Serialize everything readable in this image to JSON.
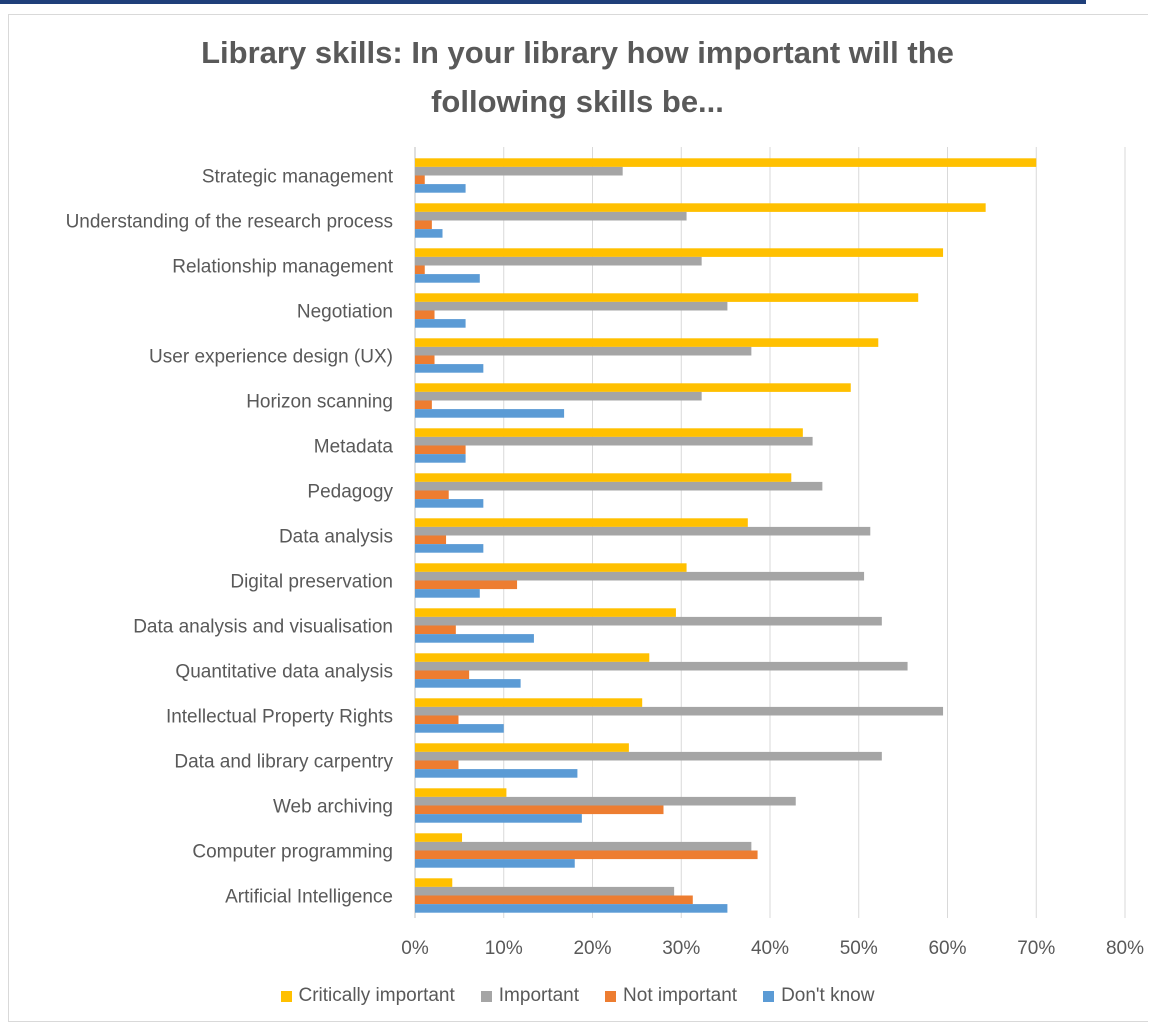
{
  "chart_data": {
    "type": "bar",
    "orientation": "horizontal",
    "title_lines": [
      "Library skills: In your library how important will the",
      "following skills be..."
    ],
    "categories": [
      "Strategic management",
      "Understanding of the research process",
      "Relationship management",
      "Negotiation",
      "User experience design (UX)",
      "Horizon scanning",
      "Metadata",
      "Pedagogy",
      "Data analysis",
      "Digital preservation",
      "Data analysis and visualisation",
      "Quantitative data analysis",
      "Intellectual Property Rights",
      "Data and library carpentry",
      "Web archiving",
      "Computer programming",
      "Artificial Intelligence"
    ],
    "series": [
      {
        "name": "Critically important",
        "color": "#ffc000",
        "values": [
          70.0,
          64.3,
          59.5,
          56.7,
          52.2,
          49.1,
          43.7,
          42.4,
          37.5,
          30.6,
          29.4,
          26.4,
          25.6,
          24.1,
          10.3,
          5.3,
          4.2
        ]
      },
      {
        "name": "Important",
        "color": "#a5a5a5",
        "values": [
          23.4,
          30.6,
          32.3,
          35.2,
          37.9,
          32.3,
          44.8,
          45.9,
          51.3,
          50.6,
          52.6,
          55.5,
          59.5,
          52.6,
          42.9,
          37.9,
          29.2
        ]
      },
      {
        "name": "Not important",
        "color": "#ed7d31",
        "values": [
          1.1,
          1.9,
          1.1,
          2.2,
          2.2,
          1.9,
          5.7,
          3.8,
          3.5,
          11.5,
          4.6,
          6.1,
          4.9,
          4.9,
          28.0,
          38.6,
          31.3
        ]
      },
      {
        "name": "Don't know",
        "color": "#5b9bd5",
        "values": [
          5.7,
          3.1,
          7.3,
          5.7,
          7.7,
          16.8,
          5.7,
          7.7,
          7.7,
          7.3,
          13.4,
          11.9,
          10.0,
          18.3,
          18.8,
          18.0,
          35.2
        ]
      }
    ],
    "x_ticks": [
      "0%",
      "10%",
      "20%",
      "30%",
      "40%",
      "50%",
      "60%",
      "70%",
      "80%"
    ],
    "xlim": [
      0,
      80
    ],
    "grid": true,
    "legend_position": "bottom"
  }
}
